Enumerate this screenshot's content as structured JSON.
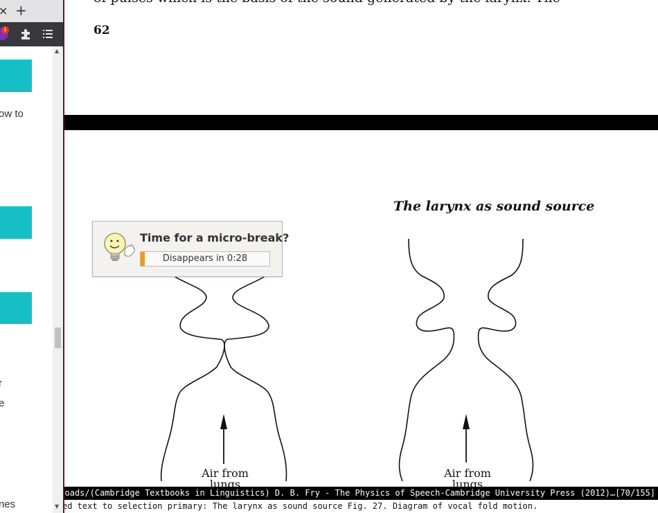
{
  "browser": {
    "tab_close": "×",
    "new_tab": "+",
    "extension_badge": "1",
    "sidebar_snippets": [
      "ow to",
      "r",
      "e",
      "nes"
    ]
  },
  "document": {
    "cutoff_line": "of pulses which is the basis of the sound generated by the larynx. The",
    "page_number": "62",
    "figure_title": "The larynx as sound source",
    "air_label_left": "Air from lungs",
    "air_label_right": "Air from lungs"
  },
  "popup": {
    "title": "Time for a micro-break?",
    "countdown": "Disappears in 0:28",
    "progress_fraction": 0.03,
    "accent_color": "#f39c12"
  },
  "status": {
    "path": "ownloads/(Cambridge Textbooks in Linguistics) D. B. Fry - The Physics of Speech-Cambridge University Press (2012)…",
    "page_indicator": "[70/155]",
    "message": "ed text to selection primary: The larynx as sound source Fig. 27. Diagram of vocal fold motion."
  },
  "colors": {
    "teal_button": "#16bfc6",
    "toolbar": "#38373c",
    "divider": "#6b1414"
  }
}
